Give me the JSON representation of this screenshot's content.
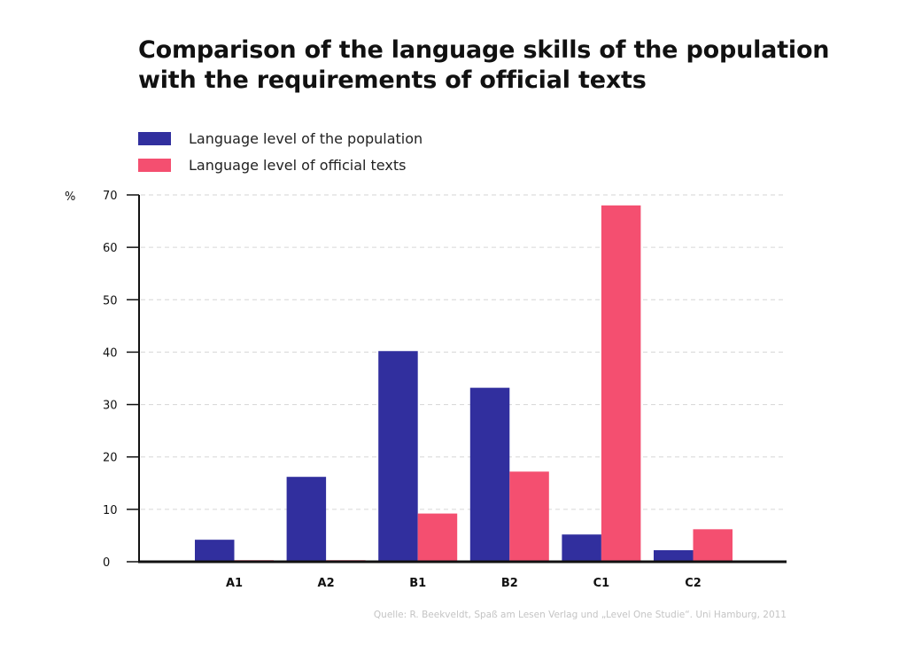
{
  "title_line1": "Comparison of the language skills of the population",
  "title_line2": "with the requirements of official texts",
  "source": "Quelle: R. Beekveldt, Spaß am Lesen Verlag und „Level One Studie“. Uni Hamburg, 2011",
  "colors": {
    "population": "#312f9e",
    "official": "#f44f70",
    "grid": "#d6d6d6",
    "axis": "#111111"
  },
  "chart_data": {
    "type": "bar",
    "categories": [
      "A1",
      "A2",
      "B1",
      "B2",
      "C1",
      "C2"
    ],
    "series": [
      {
        "name": "Language level of the population",
        "values": [
          4.2,
          16.2,
          40.2,
          33.2,
          5.2,
          2.2
        ]
      },
      {
        "name": "Language level of official texts",
        "values": [
          0.3,
          0.3,
          9.2,
          17.2,
          68.0,
          6.2
        ]
      }
    ],
    "ylabel": "%",
    "ylim": [
      0,
      70
    ],
    "yticks": [
      "0",
      "10",
      "20",
      "30",
      "40",
      "50",
      "60",
      "70"
    ],
    "grid": true,
    "legend_position": "top-left"
  }
}
